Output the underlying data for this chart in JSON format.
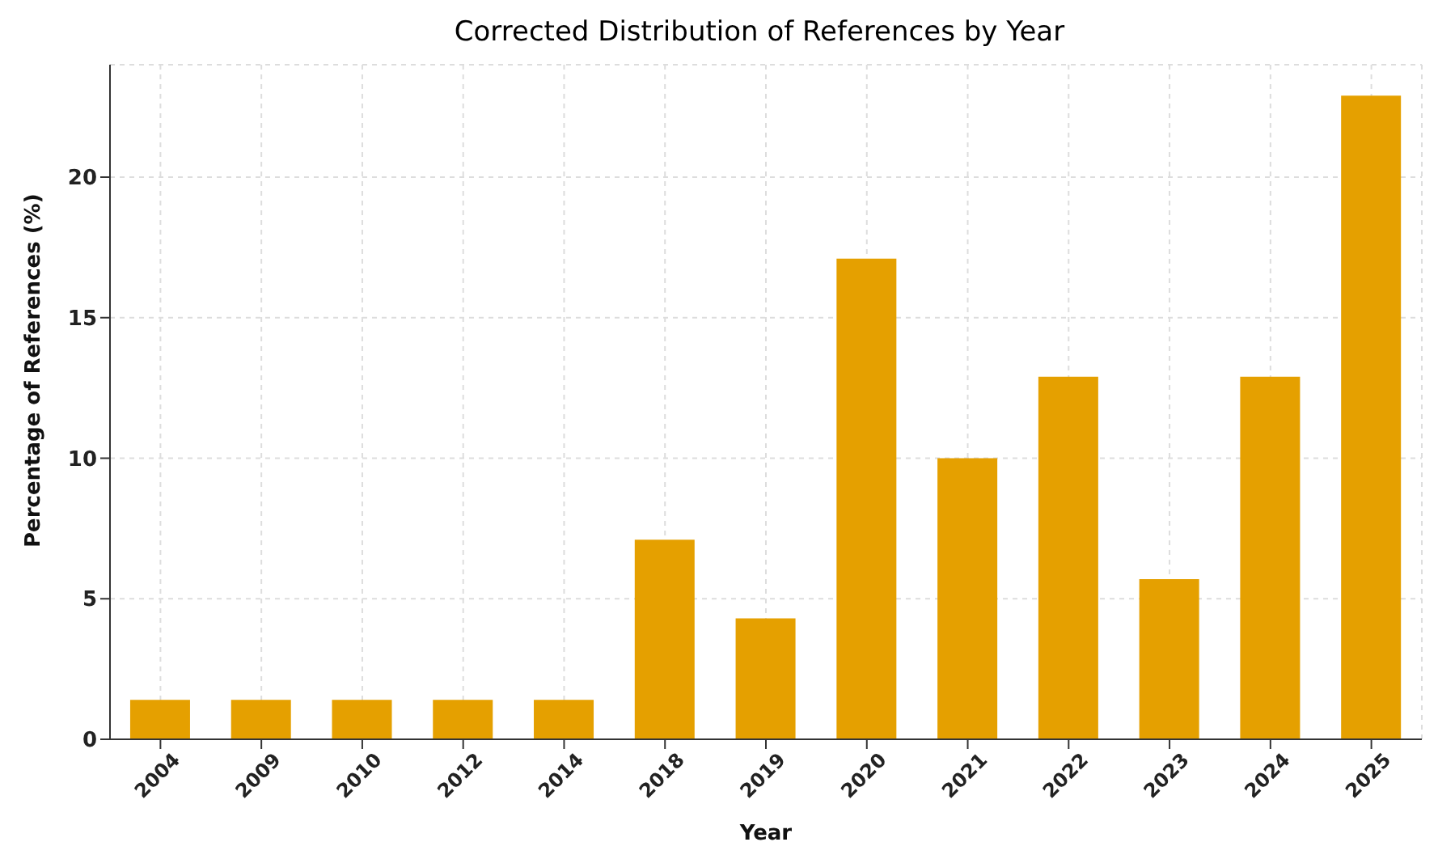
{
  "chart_data": {
    "type": "bar",
    "title": "Corrected Distribution of References by Year",
    "xlabel": "Year",
    "ylabel": "Percentage of References (%)",
    "categories": [
      "2004",
      "2009",
      "2010",
      "2012",
      "2014",
      "2018",
      "2019",
      "2020",
      "2021",
      "2022",
      "2023",
      "2024",
      "2025"
    ],
    "values": [
      1.4,
      1.4,
      1.4,
      1.4,
      1.4,
      7.1,
      4.3,
      17.1,
      10,
      12.9,
      5.7,
      12.9,
      22.9
    ],
    "color": "#e5a000",
    "ylim": [
      0,
      24
    ],
    "yticks": [
      0,
      5,
      10,
      15,
      20
    ],
    "grid": true
  }
}
